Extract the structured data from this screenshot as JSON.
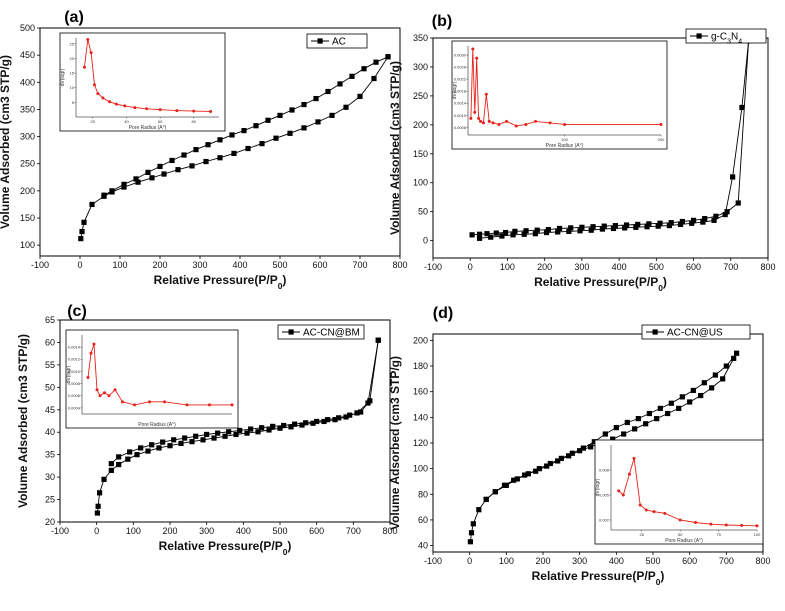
{
  "chart_data": [
    {
      "type": "line",
      "panel_label": "(a)",
      "xlabel": "Relative Pressure(P/P0)",
      "ylabel": "Volume Adsorbed (cm3 STP/g)",
      "xlim": [
        -100,
        800
      ],
      "ylim": [
        80,
        500
      ],
      "xticks": [
        -100,
        0,
        100,
        200,
        300,
        400,
        500,
        600,
        700,
        800
      ],
      "yticks": [
        100,
        150,
        200,
        250,
        300,
        350,
        400,
        450,
        500
      ],
      "legend": "top-right",
      "series": [
        {
          "name": "AC",
          "adsorption": {
            "x": [
              2,
              5,
              10,
              30,
              60,
              80,
              110,
              145,
              180,
              210,
              245,
              280,
              315,
              350,
              385,
              420,
              455,
              490,
              525,
              560,
              595,
              630,
              665,
              700,
              735,
              770
            ],
            "y": [
              112,
              125,
              142,
              175,
              190,
              198,
              207,
              216,
              224,
              231,
              239,
              246,
              254,
              261,
              269,
              278,
              287,
              297,
              306,
              316,
              327,
              339,
              354,
              374,
              407,
              447
            ]
          },
          "desorption": {
            "x": [
              770,
              740,
              710,
              680,
              650,
              620,
              590,
              560,
              530,
              500,
              470,
              440,
              410,
              380,
              350,
              320,
              290,
              260,
              230,
              200,
              170,
              140,
              110,
              80,
              60
            ],
            "y": [
              447,
              437,
              425,
              411,
              397,
              383,
              370,
              359,
              349,
              339,
              330,
              320,
              311,
              303,
              294,
              285,
              276,
              266,
              256,
              245,
              234,
              222,
              212,
              200,
              192
            ]
          }
        }
      ],
      "inset": {
        "xlabel": "Pore Radius (A°)",
        "ylabel": "dV(logr)",
        "xlim": [
          10,
          95
        ],
        "xticks": [
          20,
          40,
          60,
          80
        ],
        "ylim": [
          0,
          27
        ],
        "yticks": [
          5,
          10,
          15,
          20,
          25
        ],
        "x": [
          15,
          17,
          19,
          21,
          23,
          26,
          30,
          34,
          39,
          45,
          52,
          60,
          70,
          80,
          90
        ],
        "y": [
          17,
          26.5,
          22,
          11,
          8,
          6.5,
          5.2,
          4.4,
          3.8,
          3.2,
          2.8,
          2.5,
          2.2,
          2.0,
          1.9
        ]
      }
    },
    {
      "type": "line",
      "panel_label": "(b)",
      "xlabel": "Relative Pressure(P/P0)",
      "ylabel": "Volume Adsorbed (cm3 STP/g)",
      "xlim": [
        -100,
        800
      ],
      "ylim": [
        -30,
        350
      ],
      "xticks": [
        -100,
        0,
        100,
        200,
        300,
        400,
        500,
        600,
        700,
        800
      ],
      "yticks": [
        0,
        50,
        100,
        150,
        200,
        250,
        300,
        350
      ],
      "legend": "top-right",
      "series": [
        {
          "name": "g-C3N4",
          "adsorption": {
            "x": [
              5,
              25,
              45,
              70,
              95,
              120,
              150,
              180,
              210,
              240,
              270,
              300,
              330,
              360,
              390,
              420,
              450,
              480,
              510,
              540,
              570,
              600,
              630,
              660,
              690,
              720,
              748
            ],
            "y": [
              10,
              11,
              12,
              13,
              14,
              16,
              17,
              18,
              19,
              21,
              22,
              23,
              24,
              25,
              26,
              27,
              28,
              29,
              30,
              31,
              33,
              35,
              38,
              42,
              50,
              65,
              345
            ]
          },
          "desorption": {
            "x": [
              748,
              730,
              705,
              685,
              655,
              625,
              595,
              565,
              535,
              505,
              475,
              445,
              415,
              385,
              355,
              325,
              295,
              265,
              235,
              205,
              175,
              145,
              115,
              85,
              55,
              25
            ],
            "y": [
              345,
              230,
              110,
              45,
              35,
              32,
              30,
              28,
              26,
              25,
              24,
              23,
              22,
              21,
              20,
              18,
              17,
              16,
              15,
              14,
              12,
              11,
              10,
              8,
              6,
              4
            ]
          }
        }
      ],
      "inset": {
        "xlabel": "Pore Radius (A°)",
        "ylabel": "dV(logr)",
        "xlim": [
          0,
          200
        ],
        "xticks": [
          100,
          200
        ],
        "ylim": [
          0.00035,
          0.0033
        ],
        "yticks": [
          0.0006,
          0.001,
          0.0014,
          0.0018,
          0.0022,
          0.0026,
          0.003
        ],
        "yticklabels": [
          "0.0006",
          "0.0010",
          "0.0014",
          "0.0018",
          "0.0022",
          "0.0026",
          "0.0030"
        ],
        "x": [
          3,
          5,
          7,
          9,
          11,
          13,
          16,
          19,
          22,
          26,
          32,
          40,
          50,
          60,
          70,
          85,
          100,
          200
        ],
        "y": [
          0.0009,
          0.0032,
          0.0011,
          0.0029,
          0.0009,
          0.0008,
          0.00075,
          0.0017,
          0.0008,
          0.00075,
          0.0007,
          0.0008,
          0.00065,
          0.0007,
          0.0008,
          0.00075,
          0.0007,
          0.0007
        ]
      }
    },
    {
      "type": "line",
      "panel_label": "(c)",
      "xlabel": "Relative Pressure(P/P0)",
      "ylabel": "Volume Adsorbed (cm3 STP/g)",
      "xlim": [
        -100,
        800
      ],
      "ylim": [
        20,
        65
      ],
      "xticks": [
        -100,
        0,
        100,
        200,
        300,
        400,
        500,
        600,
        700,
        800
      ],
      "yticks": [
        20,
        25,
        30,
        35,
        40,
        45,
        50,
        55,
        60,
        65
      ],
      "legend": "top-right",
      "series": [
        {
          "name": "AC-CN@BM",
          "adsorption": {
            "x": [
              2,
              4,
              8,
              20,
              40,
              60,
              85,
              110,
              140,
              170,
              200,
              230,
              260,
              290,
              320,
              350,
              380,
              410,
              440,
              470,
              500,
              530,
              560,
              590,
              620,
              650,
              680,
              710,
              740,
              768
            ],
            "y": [
              22,
              23.5,
              26.5,
              29.5,
              31.5,
              32.8,
              34,
              35,
              35.8,
              36.5,
              37,
              37.5,
              37.9,
              38.3,
              38.7,
              39.1,
              39.5,
              39.8,
              40.1,
              40.5,
              40.9,
              41.2,
              41.6,
              42,
              42.4,
              42.8,
              43.4,
              44.3,
              46.5,
              60.5
            ]
          },
          "desorption": {
            "x": [
              768,
              745,
              720,
              690,
              660,
              630,
              600,
              570,
              540,
              510,
              480,
              450,
              420,
              390,
              360,
              330,
              300,
              270,
              240,
              210,
              180,
              150,
              120,
              90,
              60,
              40
            ],
            "y": [
              60.5,
              47,
              44.5,
              43.8,
              43.2,
              42.8,
              42.4,
              42.1,
              41.8,
              41.5,
              41.3,
              41,
              40.7,
              40.4,
              40.1,
              39.8,
              39.5,
              39.1,
              38.7,
              38.3,
              37.8,
              37.2,
              36.5,
              35.6,
              34.5,
              33
            ]
          }
        }
      ],
      "inset": {
        "xlabel": "Pore Radius (A°)",
        "ylabel": "dV(logr)",
        "xlim": [
          0,
          100
        ],
        "ylim": [
          0.0003,
          0.0016
        ],
        "yticks": [
          0.0004,
          0.0006,
          0.0008,
          0.001,
          0.0012,
          0.0014
        ],
        "yticklabels": [
          "0,0004",
          "0,0006",
          "0,0008",
          "0,0010",
          "0,0012",
          "0,0014"
        ],
        "x": [
          4,
          6,
          8,
          10,
          12,
          15,
          18,
          22,
          27,
          35,
          45,
          55,
          70,
          85,
          100
        ],
        "y": [
          0.0009,
          0.0013,
          0.00145,
          0.0007,
          0.0006,
          0.00065,
          0.0006,
          0.0007,
          0.0005,
          0.00045,
          0.0005,
          0.0005,
          0.00045,
          0.00045,
          0.00045
        ]
      }
    },
    {
      "type": "line",
      "panel_label": "(d)",
      "xlabel": "Relative Pressure(P/P0)",
      "ylabel": "Volume Adsorbed (cm3 STP/g)",
      "xlim": [
        -100,
        800
      ],
      "ylim": [
        35,
        205
      ],
      "xticks": [
        -100,
        0,
        100,
        200,
        300,
        400,
        500,
        600,
        700,
        800
      ],
      "yticks": [
        40,
        60,
        80,
        100,
        120,
        140,
        160,
        180,
        200
      ],
      "legend": "top-right",
      "series": [
        {
          "name": "AC-CN@US",
          "adsorption": {
            "x": [
              2,
              5,
              10,
              25,
              45,
              70,
              95,
              120,
              150,
              180,
              210,
              240,
              270,
              300,
              330,
              360,
              390,
              420,
              450,
              480,
              510,
              540,
              570,
              600,
              630,
              660,
              690,
              720
            ],
            "y": [
              43,
              50,
              57,
              68,
              76,
              82,
              87,
              91,
              95,
              98,
              102,
              106,
              110,
              114,
              117,
              120,
              123,
              127,
              131,
              135,
              139,
              143,
              147,
              152,
              157,
              163,
              170,
              186
            ]
          },
          "desorption": {
            "x": [
              728,
              700,
              670,
              640,
              610,
              580,
              550,
              520,
              490,
              460,
              430,
              400,
              370,
              340,
              310,
              280,
              250,
              220,
              190,
              160,
              130,
              100,
              70,
              45
            ],
            "y": [
              190,
              180,
              173,
              167,
              161,
              156,
              151,
              147,
              143,
              139,
              136,
              132,
              127,
              121,
              116,
              112,
              108,
              104,
              100,
              96,
              92,
              87,
              82,
              76
            ]
          }
        }
      ],
      "inset": {
        "xlabel": "Pore Radius (A°)",
        "ylabel": "dV(logr)",
        "xlim": [
          5,
          100
        ],
        "xticks": [
          25,
          50,
          75,
          100
        ],
        "ylim": [
          0.0008,
          0.011
        ],
        "yticks": [
          0.002,
          0.005,
          0.008
        ],
        "yticklabels": [
          "0,002",
          "0,005",
          "0,008"
        ],
        "x": [
          10,
          13,
          17,
          20,
          24,
          28,
          33,
          40,
          50,
          60,
          70,
          80,
          90,
          100
        ],
        "y": [
          0.0055,
          0.005,
          0.0075,
          0.0094,
          0.0038,
          0.0032,
          0.003,
          0.0028,
          0.002,
          0.0017,
          0.0015,
          0.0014,
          0.00135,
          0.0013
        ]
      }
    }
  ]
}
